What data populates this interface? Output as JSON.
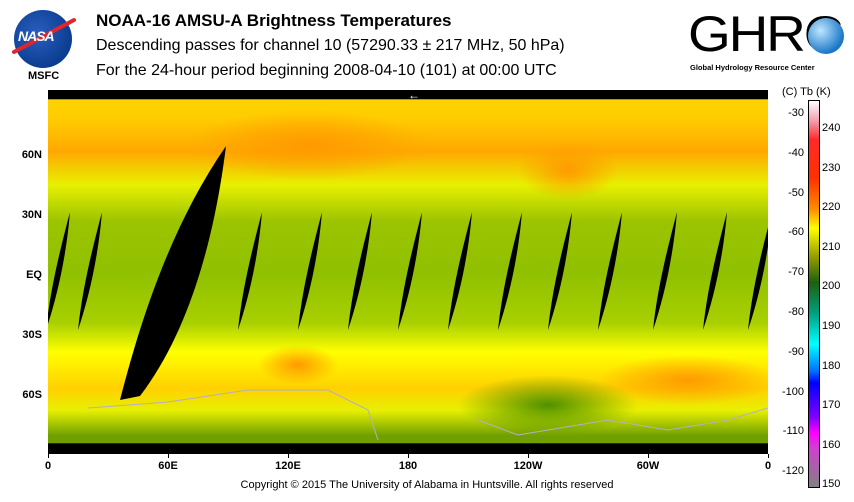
{
  "header": {
    "title": "NOAA-16 AMSU-A Brightness Temperatures",
    "subtitle": "Descending passes for channel 10 (57290.33 ± 217 MHz, 50 hPa)",
    "period": "For the 24-hour period beginning 2008-04-10 (101) at 00:00 UTC"
  },
  "logos": {
    "nasa": "NASA",
    "msfc": "MSFC",
    "ghrc": "GHRC",
    "ghrc_sub": "Global Hydrology Resource Center"
  },
  "map": {
    "direction_arrow": "←",
    "lon_labels": [
      "0",
      "60E",
      "120E",
      "180",
      "120W",
      "60W",
      "0"
    ],
    "lat_labels": [
      "60N",
      "30N",
      "EQ",
      "30S",
      "60S"
    ]
  },
  "colorbar": {
    "header": "(C)  Tb  (K)",
    "celsius": [
      "-30",
      "-40",
      "-50",
      "-60",
      "-70",
      "-80",
      "-90",
      "-100",
      "-110",
      "-120"
    ],
    "kelvin": [
      "240",
      "230",
      "220",
      "210",
      "200",
      "190",
      "180",
      "170",
      "160",
      "150"
    ],
    "range_k": [
      150,
      245
    ]
  },
  "footer": {
    "copyright": "Copyright © 2015 The University of Alabama in Huntsville.  All rights reserved"
  }
}
